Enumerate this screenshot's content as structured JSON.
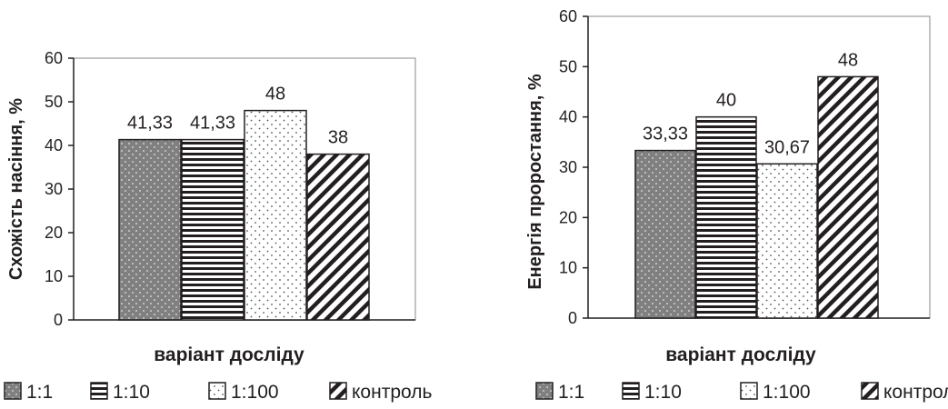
{
  "legend": [
    {
      "label": "1:1",
      "pattern": "dots-dark"
    },
    {
      "label": "1:10",
      "pattern": "hlines"
    },
    {
      "label": "1:100",
      "pattern": "dots-light"
    },
    {
      "label": "контроль",
      "pattern": "diagonal"
    }
  ],
  "colors": {
    "ink": "#231f20",
    "dark_fill": "#808080",
    "light_fill": "#ffffff"
  },
  "chart_data": [
    {
      "type": "bar",
      "categories": [
        "1:1",
        "1:10",
        "1:100",
        "контроль"
      ],
      "values": [
        41.33,
        41.33,
        48,
        38
      ],
      "data_labels": [
        "41,33",
        "41,33",
        "48",
        "38"
      ],
      "ylabel": "Схожість насіння, %",
      "xlabel": "варіант досліду",
      "ylim": [
        0,
        60
      ],
      "yticks": [
        "0",
        "10",
        "20",
        "30",
        "40",
        "50",
        "60"
      ],
      "grid": false,
      "legend_position": "bottom"
    },
    {
      "type": "bar",
      "categories": [
        "1:1",
        "1:10",
        "1:100",
        "контроль"
      ],
      "values": [
        33.33,
        40,
        30.67,
        48
      ],
      "data_labels": [
        "33,33",
        "40",
        "30,67",
        "48"
      ],
      "ylabel": "Енергія  проростання, %",
      "xlabel": "варіант досліду",
      "ylim": [
        0,
        60
      ],
      "yticks": [
        "0",
        "10",
        "20",
        "30",
        "40",
        "50",
        "60"
      ],
      "grid": false,
      "legend_position": "bottom"
    }
  ]
}
